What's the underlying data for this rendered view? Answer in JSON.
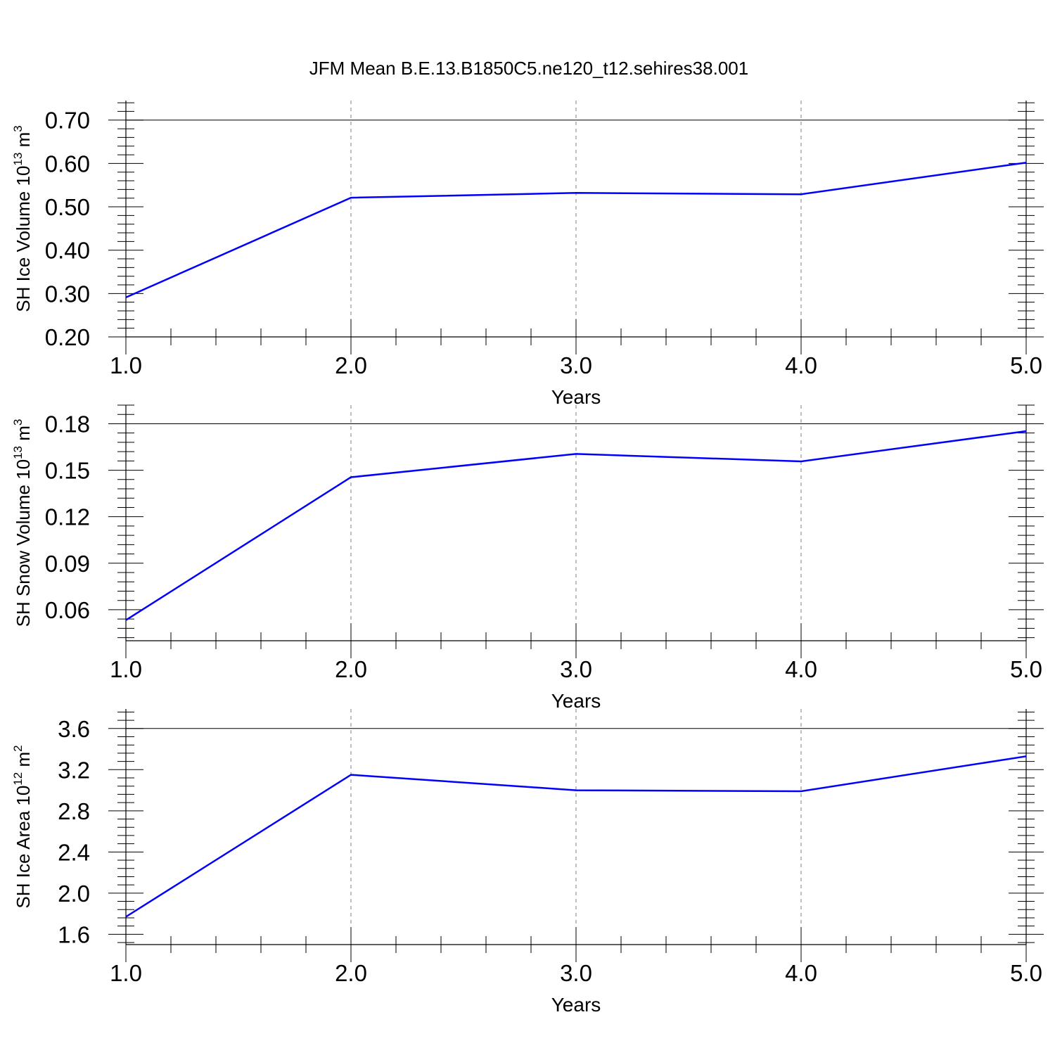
{
  "title": "JFM Mean B.E.13.B1850C5.ne120_t12.sehires38.001",
  "colors": {
    "series": "#0000ff",
    "axis": "#000000",
    "grid": "#808080"
  },
  "chart_data": [
    {
      "type": "line",
      "ylabel_main": "SH Ice Volume 10",
      "ylabel_exp": "13",
      "ylabel_unit": " m",
      "ylabel_unit_exp": "3",
      "xlabel": "Years",
      "x": [
        1,
        2,
        3,
        4,
        5
      ],
      "series": [
        {
          "name": "SH Ice Volume",
          "values": [
            0.291,
            0.521,
            0.532,
            0.529,
            0.602
          ]
        }
      ],
      "xlim": [
        1,
        5
      ],
      "ylim": [
        0.2,
        0.745
      ],
      "xticks": [
        "1.0",
        "2.0",
        "3.0",
        "4.0",
        "5.0"
      ],
      "yticks": [
        0.2,
        0.3,
        0.4,
        0.5,
        0.6,
        0.7
      ],
      "ytick_labels": [
        "0.20",
        "0.30",
        "0.40",
        "0.50",
        "0.60",
        "0.70"
      ],
      "grid": "vertical dashed",
      "ref_line": 0.7
    },
    {
      "type": "line",
      "ylabel_main": "SH Snow Volume 10",
      "ylabel_exp": "13",
      "ylabel_unit": " m",
      "ylabel_unit_exp": "3",
      "xlabel": "Years",
      "x": [
        1,
        2,
        3,
        4,
        5
      ],
      "series": [
        {
          "name": "SH Snow Volume",
          "values": [
            0.0533,
            0.1455,
            0.1605,
            0.1557,
            0.1752
          ]
        }
      ],
      "xlim": [
        1,
        5
      ],
      "ylim": [
        0.04,
        0.192
      ],
      "xticks": [
        "1.0",
        "2.0",
        "3.0",
        "4.0",
        "5.0"
      ],
      "yticks": [
        0.06,
        0.09,
        0.12,
        0.15,
        0.18
      ],
      "ytick_labels": [
        "0.06",
        "0.09",
        "0.12",
        "0.15",
        "0.18"
      ],
      "grid": "vertical dashed",
      "ref_line": 0.18
    },
    {
      "type": "line",
      "ylabel_main": "SH Ice Area 10",
      "ylabel_exp": "12",
      "ylabel_unit": " m",
      "ylabel_unit_exp": "2",
      "xlabel": "Years",
      "x": [
        1,
        2,
        3,
        4,
        5
      ],
      "series": [
        {
          "name": "SH Ice Area",
          "values": [
            1.77,
            3.15,
            3.0,
            2.99,
            3.33
          ]
        }
      ],
      "xlim": [
        1,
        5
      ],
      "ylim": [
        1.5,
        3.79
      ],
      "xticks": [
        "1.0",
        "2.0",
        "3.0",
        "4.0",
        "5.0"
      ],
      "yticks": [
        1.6,
        2.0,
        2.4,
        2.8,
        3.2,
        3.6
      ],
      "ytick_labels": [
        "1.6",
        "2.0",
        "2.4",
        "2.8",
        "3.2",
        "3.6"
      ],
      "grid": "vertical dashed",
      "ref_line": 3.6
    }
  ]
}
